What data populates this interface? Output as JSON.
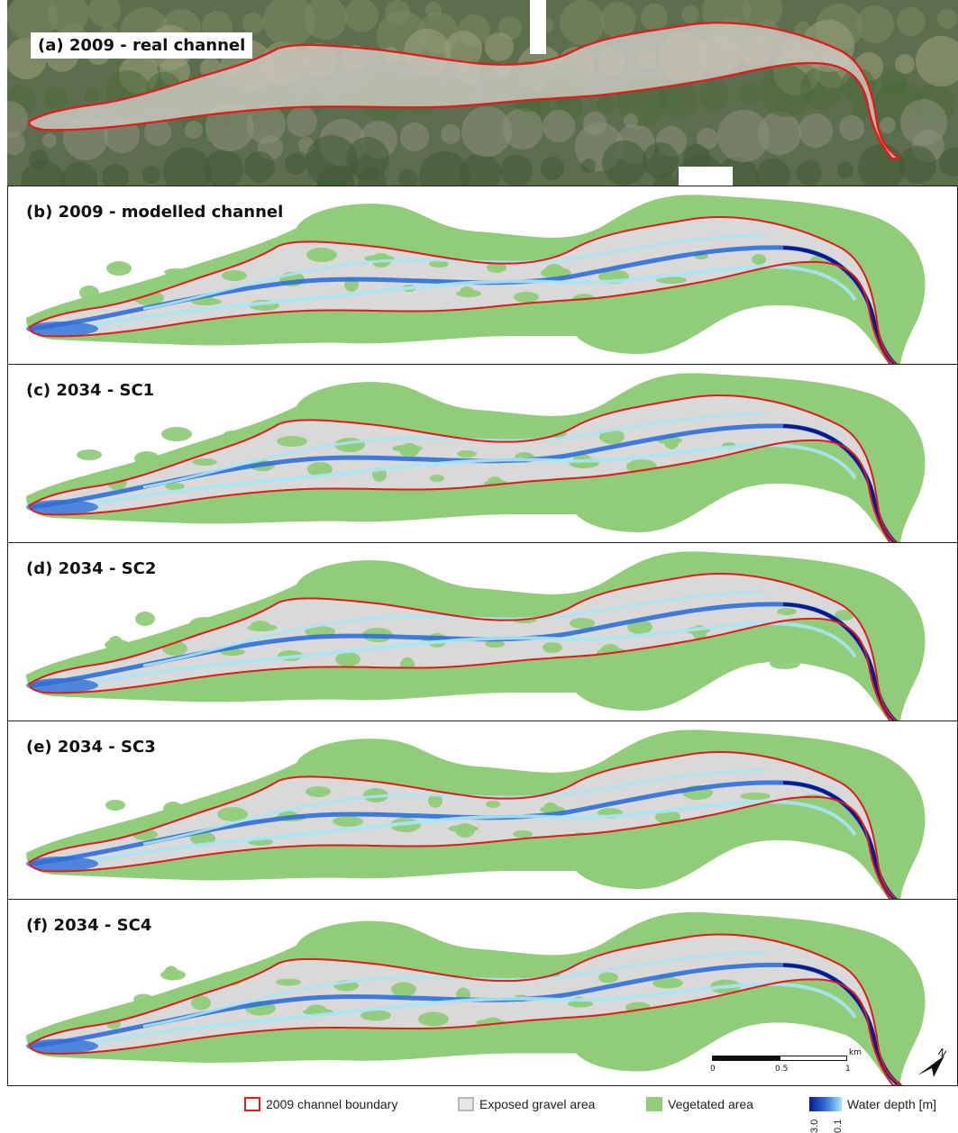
{
  "panels": [
    {
      "id": "a",
      "label": "(a) 2009 - real channel",
      "kind": "aerial"
    },
    {
      "id": "b",
      "label": "(b) 2009 - modelled channel",
      "kind": "model"
    },
    {
      "id": "c",
      "label": "(c) 2034 - SC1",
      "kind": "model"
    },
    {
      "id": "d",
      "label": "(d) 2034 - SC2",
      "kind": "model"
    },
    {
      "id": "e",
      "label": "(e) 2034 - SC3",
      "kind": "model"
    },
    {
      "id": "f",
      "label": "(f) 2034 - SC4",
      "kind": "model"
    }
  ],
  "legend": {
    "boundary": "2009 channel boundary",
    "gravel": "Exposed gravel area",
    "vegetated": "Vegetated area",
    "water_depth": "Water depth [m]",
    "ramp_max": "3.0",
    "ramp_min": "0.1"
  },
  "scale_bar": {
    "unit": "km",
    "ticks": [
      "0",
      "0.5",
      "1"
    ]
  },
  "north_label": "N",
  "colors": {
    "boundary": "#e01b1b",
    "gravel": "#d9d9d9",
    "vegetation": "#90cc7a",
    "water_deep": "#0b1a8c",
    "water_mid": "#2f6fd8",
    "water_shallow": "#a8e6f5"
  }
}
